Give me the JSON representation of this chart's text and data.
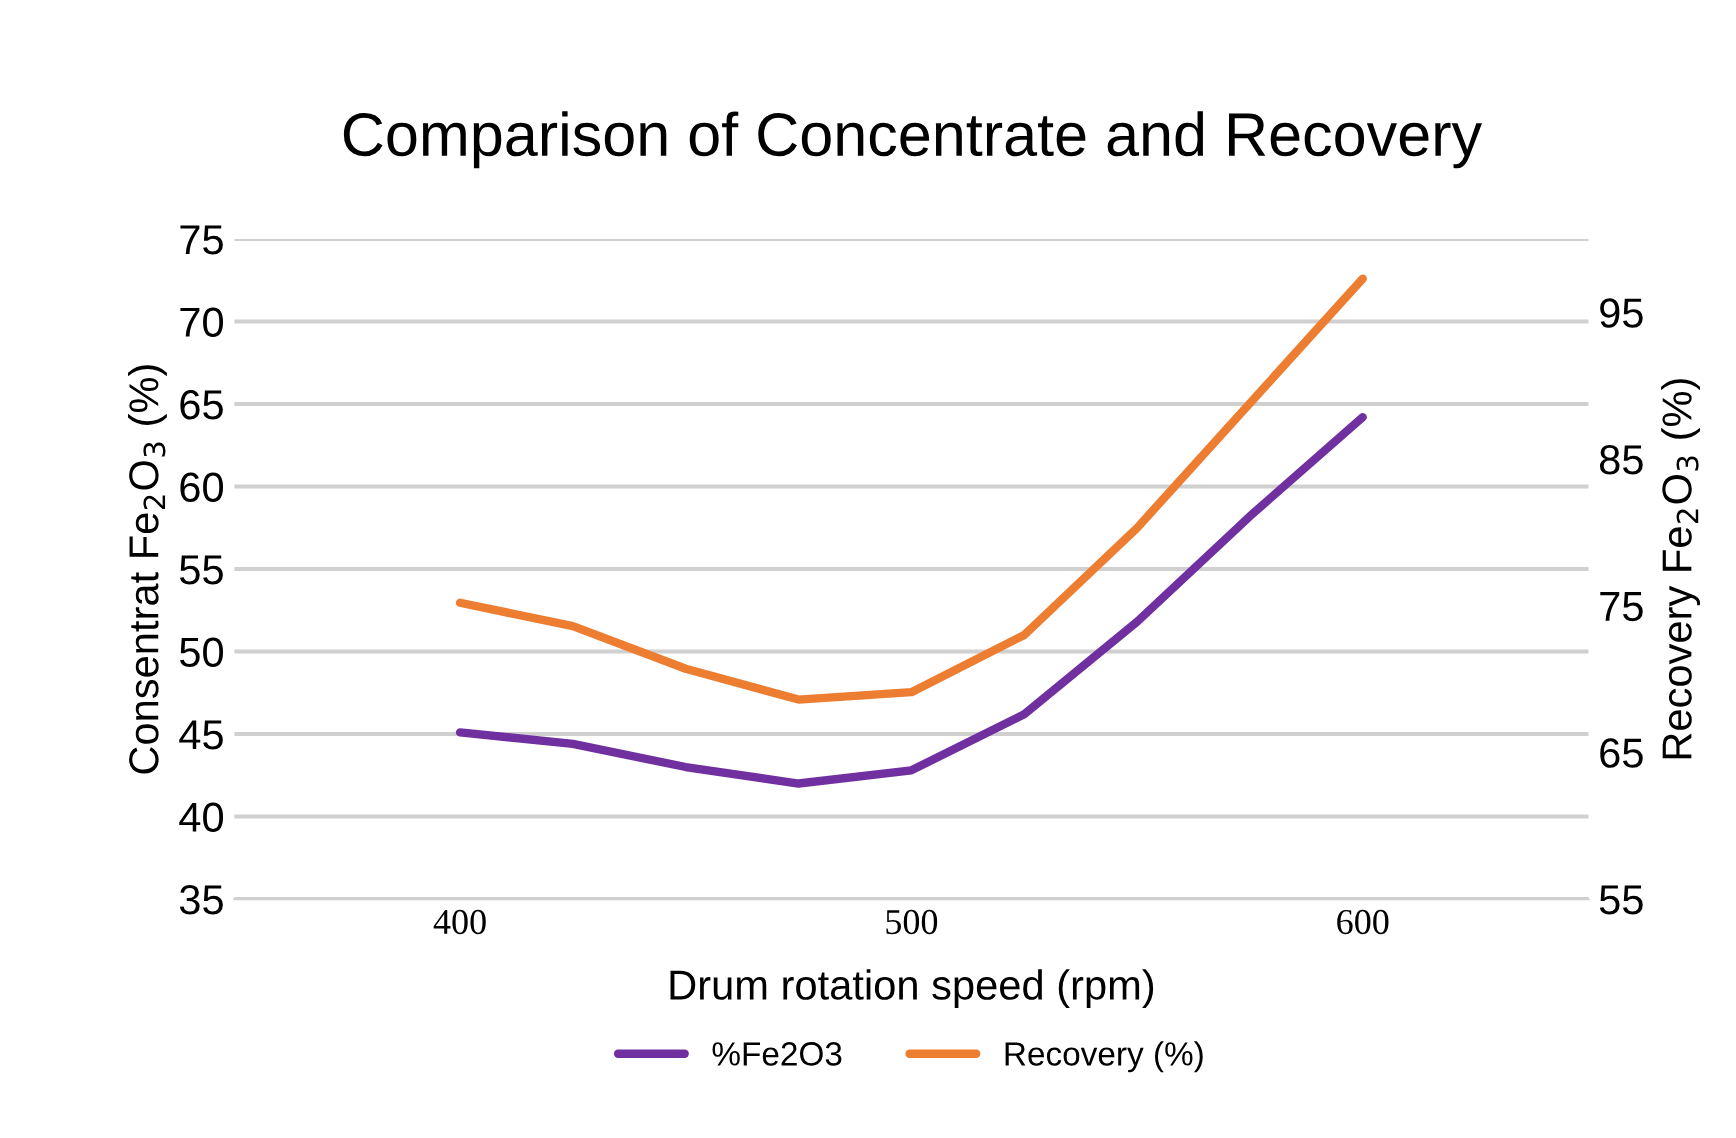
{
  "chart_data": {
    "type": "line",
    "title": "Comparison of Concentrate and Recovery",
    "xlabel": "Drum rotation speed (rpm)",
    "ylabel": "Consentrat Fe$_{2}$O$_{3}$ (%)",
    "y2label": "Recovery Fe$_{2}$O$_{3}$ (%)",
    "x": [
      400,
      425,
      450,
      475,
      500,
      525,
      550,
      575,
      600
    ],
    "series": [
      {
        "name": "%Fe2O3",
        "color": "#7030a0",
        "values": [
          45.1,
          44.4,
          43.0,
          42.0,
          42.8,
          46.2,
          51.8,
          58.2,
          64.2
        ]
      },
      {
        "name": "Recovery (%)",
        "color": "#ed7d31",
        "values": [
          75.2,
          73.6,
          70.7,
          68.6,
          69.1,
          73.0,
          80.3,
          88.8,
          97.3
        ],
        "axis": "y2"
      }
    ],
    "xlim": [
      350,
      650
    ],
    "xticks": [
      400,
      500,
      600
    ],
    "ylim": [
      35,
      75
    ],
    "yticks": [
      35,
      40,
      45,
      50,
      55,
      60,
      65,
      70,
      75
    ],
    "y2lim": [
      55,
      100
    ],
    "y2ticks": [
      55,
      65,
      75,
      85,
      95
    ],
    "grid": "y",
    "legend": "bottom",
    "line_style": "solid",
    "marker": "none"
  }
}
